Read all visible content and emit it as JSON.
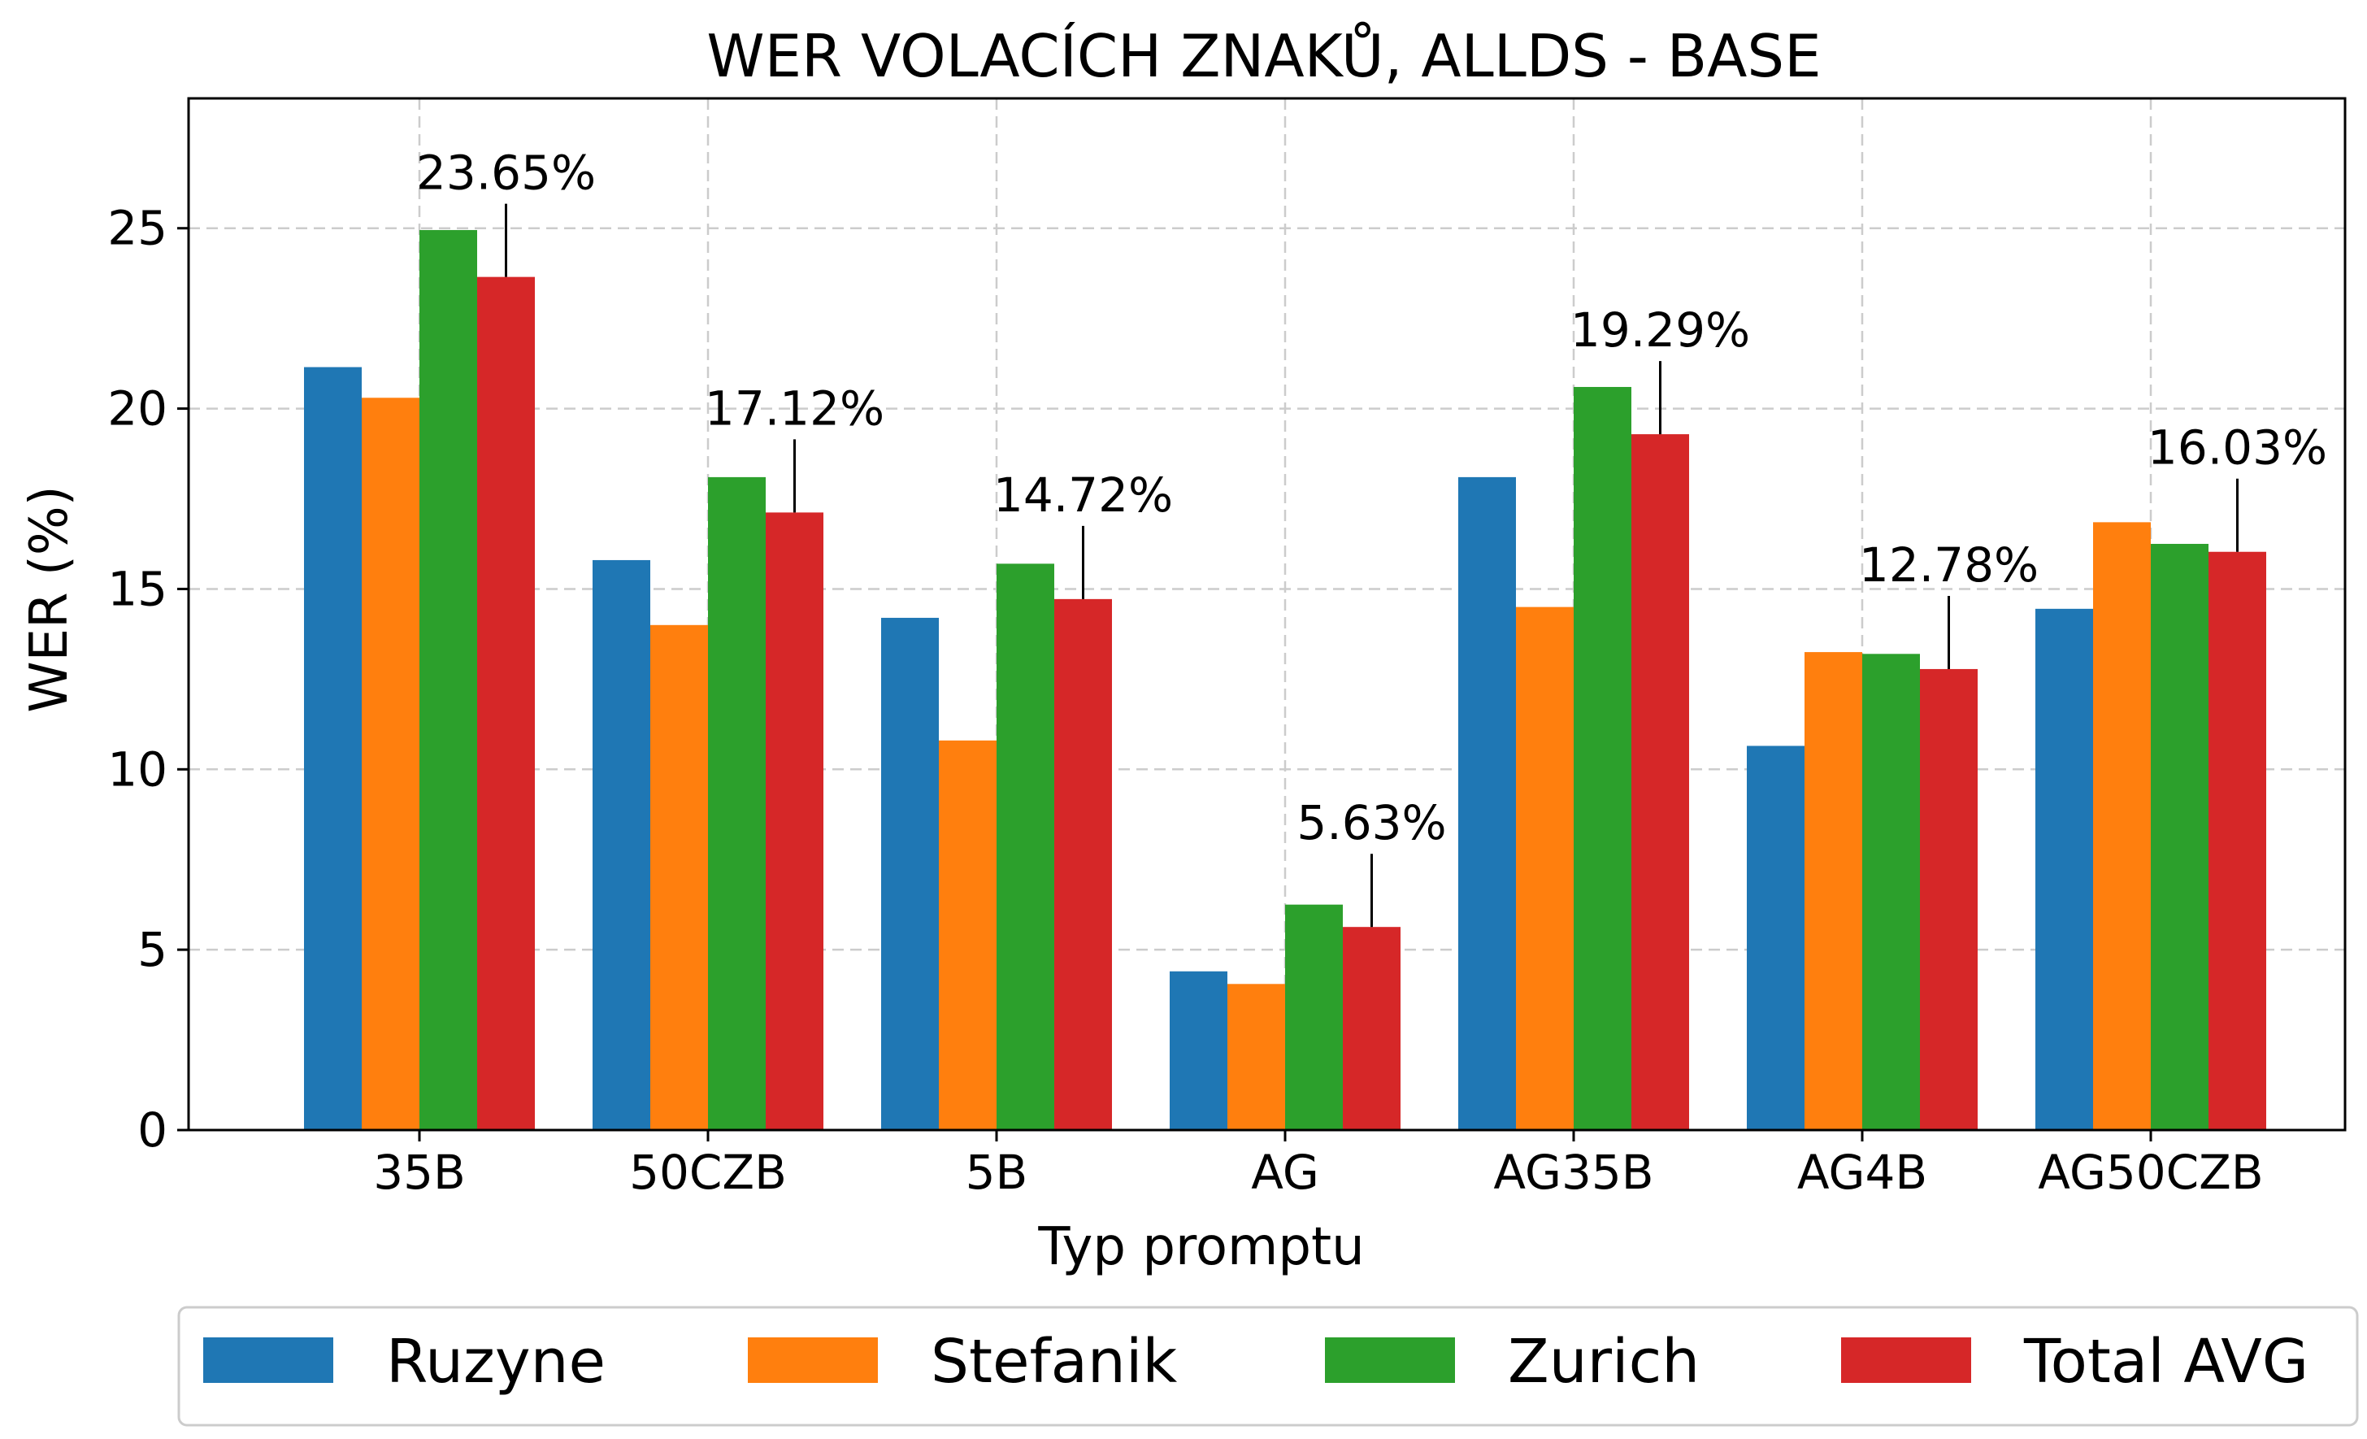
{
  "chart_data": {
    "type": "bar",
    "title": "WER VOLACÍCH ZNAKŮ, ALLDS - BASE",
    "xlabel": "Typ promptu",
    "ylabel": "WER (%)",
    "ylim": [
      0,
      28.6
    ],
    "yticks": [
      0,
      5,
      10,
      15,
      20,
      25
    ],
    "grid": true,
    "legend_position": "bottom",
    "categories": [
      "35B",
      "50CZB",
      "5B",
      "AG",
      "AG35B",
      "AG4B",
      "AG50CZB"
    ],
    "series": [
      {
        "name": "Ruzyne",
        "color": "#1f77b4",
        "values": [
          21.15,
          15.8,
          14.2,
          4.4,
          18.1,
          10.65,
          14.45
        ]
      },
      {
        "name": "Stefanik",
        "color": "#ff7f0e",
        "values": [
          20.3,
          14.0,
          10.8,
          4.05,
          14.5,
          13.25,
          16.85
        ]
      },
      {
        "name": "Zurich",
        "color": "#2ca02c",
        "values": [
          24.95,
          18.1,
          15.7,
          6.25,
          20.6,
          13.2,
          16.25
        ]
      },
      {
        "name": "Total AVG",
        "color": "#d62728",
        "values": [
          23.65,
          17.12,
          14.72,
          5.63,
          19.29,
          12.78,
          16.03
        ]
      }
    ],
    "annotations": {
      "series": "Total AVG",
      "labels": [
        "23.65%",
        "17.12%",
        "14.72%",
        "5.63%",
        "19.29%",
        "12.78%",
        "16.03%"
      ]
    }
  }
}
